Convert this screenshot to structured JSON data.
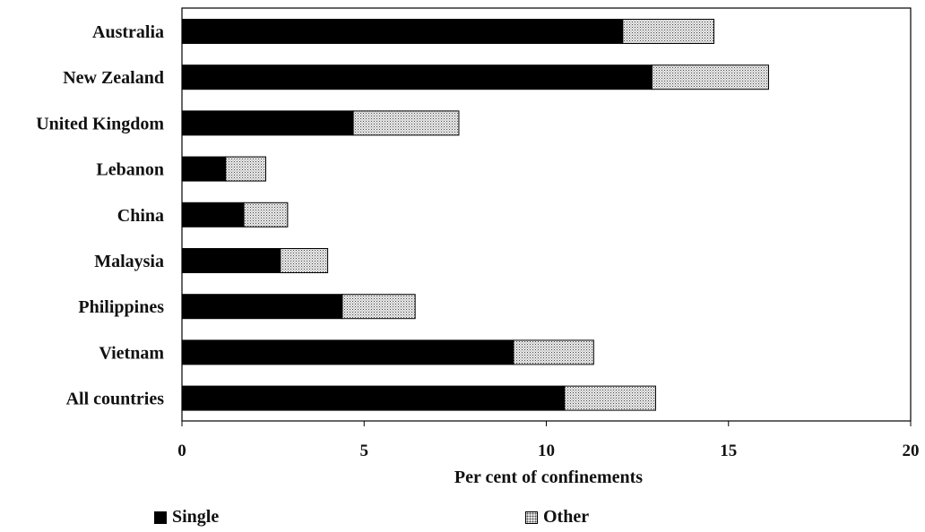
{
  "chart_data": {
    "type": "bar",
    "orientation": "horizontal",
    "stacked": true,
    "categories": [
      "Australia",
      "New Zealand",
      "United Kingdom",
      "Lebanon",
      "China",
      "Malaysia",
      "Philippines",
      "Vietnam",
      "All countries"
    ],
    "series": [
      {
        "name": "Single",
        "values": [
          12.1,
          12.9,
          4.7,
          1.2,
          1.7,
          2.7,
          4.4,
          9.1,
          10.5
        ]
      },
      {
        "name": "Other",
        "values": [
          2.5,
          3.2,
          2.9,
          1.1,
          1.2,
          1.3,
          2.0,
          2.2,
          2.5
        ]
      }
    ],
    "xlabel": "Per cent of confinements",
    "xlim": [
      0,
      20
    ],
    "xticks": [
      "0",
      "5",
      "10",
      "15",
      "20"
    ],
    "legend_position": "bottom",
    "grid": false,
    "colors": {
      "Single": "#000000",
      "Other": "#d9d9d9"
    }
  }
}
